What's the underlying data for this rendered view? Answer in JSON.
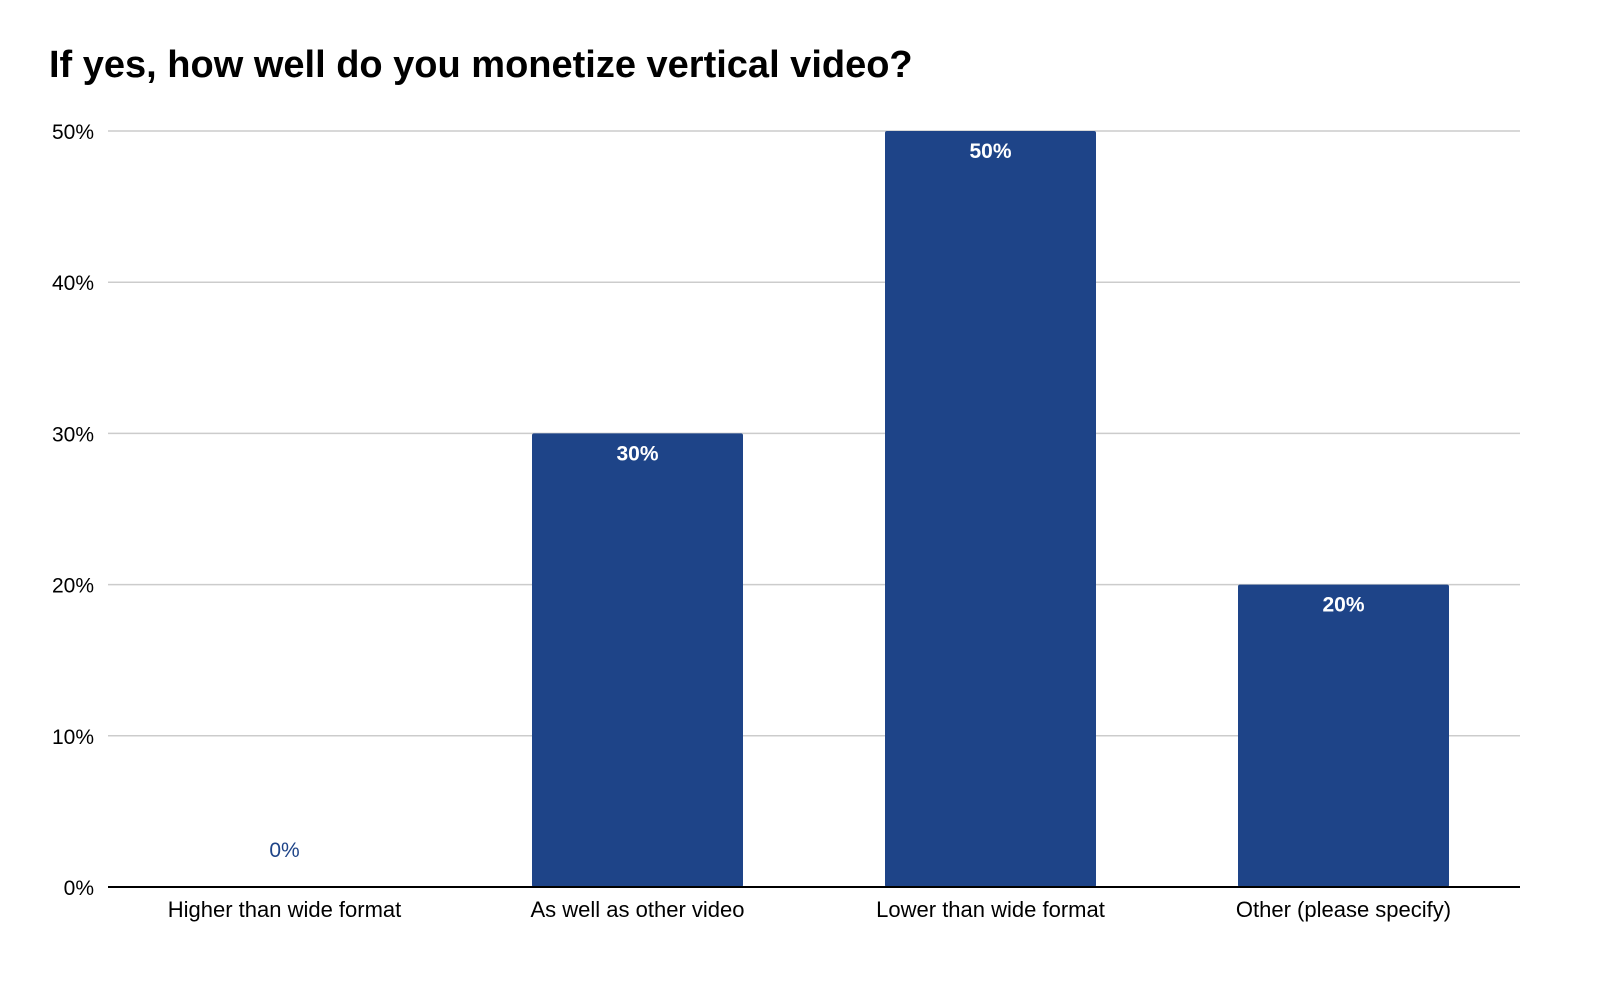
{
  "chart_data": {
    "type": "bar",
    "title": "If yes, how well do you monetize vertical video?",
    "categories": [
      "Higher than wide format",
      "As well as other video",
      "Lower than wide format",
      "Other (please specify)"
    ],
    "values": [
      0,
      30,
      50,
      20
    ],
    "data_labels": [
      "0%",
      "30%",
      "50%",
      "20%"
    ],
    "y_ticks": [
      0,
      10,
      20,
      30,
      40,
      50
    ],
    "y_tick_labels": [
      "0%",
      "10%",
      "20%",
      "30%",
      "40%",
      "50%"
    ],
    "ylim": [
      0,
      50
    ],
    "xlabel": "",
    "ylabel": "",
    "grid": true,
    "legend": "none",
    "colors": {
      "bar": "#1e4488",
      "grid": "#cccccc",
      "axis": "#000000",
      "zero_label": "#1e4488"
    }
  }
}
